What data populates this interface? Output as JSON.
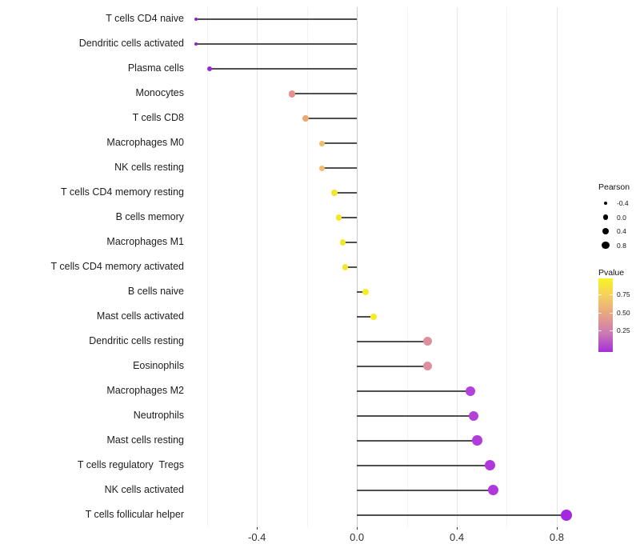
{
  "chart_data": {
    "type": "lollipop",
    "title": "",
    "xlabel": "",
    "ylabel": "",
    "categories": [
      "T cells CD4 naive",
      "Dendritic cells activated",
      "Plasma cells",
      "Monocytes",
      "T cells CD8",
      "Macrophages M0",
      "NK cells resting",
      "T cells CD4 memory resting",
      "B cells memory",
      "Macrophages M1",
      "T cells CD4 memory activated",
      "B cells naive",
      "Mast cells activated",
      "Dendritic cells resting",
      "Eosinophils",
      "Macrophages M2",
      "Neutrophils",
      "Mast cells resting",
      "T cells regulatory  Tregs",
      "NK cells activated",
      "T cells follicular helper"
    ],
    "values": [
      -0.645,
      -0.645,
      -0.59,
      -0.26,
      -0.205,
      -0.14,
      -0.14,
      -0.09,
      -0.073,
      -0.057,
      -0.046,
      0.034,
      0.068,
      0.283,
      0.283,
      0.455,
      0.468,
      0.482,
      0.533,
      0.545,
      0.84
    ],
    "point_colors": [
      "#8d26c9",
      "#8d26c9",
      "#9a2ad0",
      "#e7918d",
      "#eba873",
      "#eebd6e",
      "#eebd6e",
      "#f3e72e",
      "#f3e72e",
      "#f3e72e",
      "#f3e72e",
      "#f5ee25",
      "#f5ee25",
      "#dd8f9e",
      "#dd8f9e",
      "#b340d8",
      "#b340d8",
      "#b23cdb",
      "#af37dc",
      "#af37dc",
      "#a428e0"
    ],
    "point_radii": [
      2.0,
      2.0,
      3.0,
      4.2,
      4.2,
      3.5,
      3.5,
      3.7,
      3.7,
      3.7,
      3.7,
      3.9,
      3.9,
      5.6,
      5.6,
      6.2,
      6.2,
      6.3,
      6.6,
      6.6,
      7.0
    ],
    "xlim": [
      -0.66,
      0.909
    ],
    "x_ticks": [
      -0.4,
      0.0,
      0.4,
      0.8
    ],
    "x_tick_labels": [
      "-0.4",
      "0.0",
      "0.4",
      "0.8"
    ],
    "x_minor_ticks": [
      -0.6,
      -0.2,
      0.2,
      0.6
    ],
    "baseline": 0.0,
    "grid": true,
    "stem_color": "#4f4f4f",
    "zero_line_color": "#c9c9c9",
    "legend_position": "right",
    "legend": {
      "size_title": "Pearson",
      "size_entries": [
        {
          "label": "-0.4",
          "r": 2.3
        },
        {
          "label": "0.0",
          "r": 3.4
        },
        {
          "label": "0.4",
          "r": 4.1
        },
        {
          "label": "0.8",
          "r": 4.7
        }
      ],
      "color_title": "Pvalue",
      "color_tick_labels": [
        "0.75",
        "0.50",
        "0.25"
      ],
      "gradient_stops": [
        "#f8f524",
        "#f4cd62",
        "#e7a287",
        "#cb79b4",
        "#a42fd9"
      ]
    }
  }
}
